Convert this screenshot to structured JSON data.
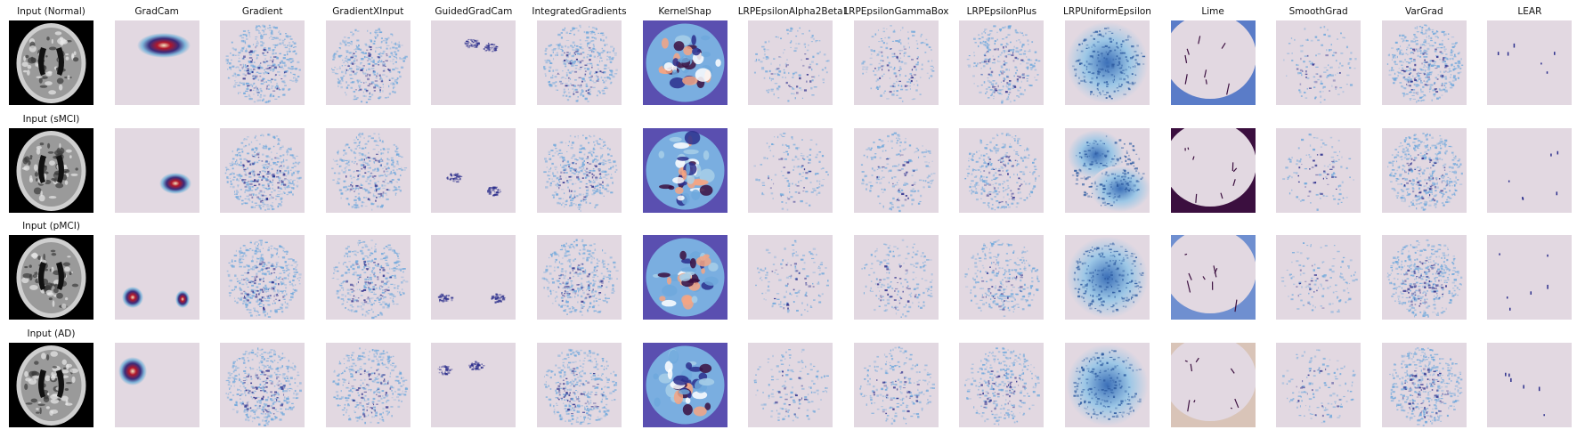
{
  "figure": {
    "column_titles": [
      "",
      "GradCam",
      "Gradient",
      "GradientXInput",
      "GuidedGradCam",
      "IntegratedGradients",
      "KernelShap",
      "LRPEpsilonAlpha2Beta1",
      "LRPEpsilonGammaBox",
      "LRPEpsilonPlus",
      "LRPUniformEpsilon",
      "Lime",
      "SmoothGrad",
      "VarGrad",
      "LEAR"
    ],
    "row_titles": [
      "Input (Normal)",
      "Input (sMCI)",
      "Input (pMCI)",
      "Input (AD)"
    ],
    "colors": {
      "background": "#e2d8e1",
      "mid": "#6fa8dc",
      "dark": "#2c2f8c",
      "deep": "#3b0f3f",
      "hot": "#f4a582",
      "mri_bg": "#000000"
    }
  }
}
